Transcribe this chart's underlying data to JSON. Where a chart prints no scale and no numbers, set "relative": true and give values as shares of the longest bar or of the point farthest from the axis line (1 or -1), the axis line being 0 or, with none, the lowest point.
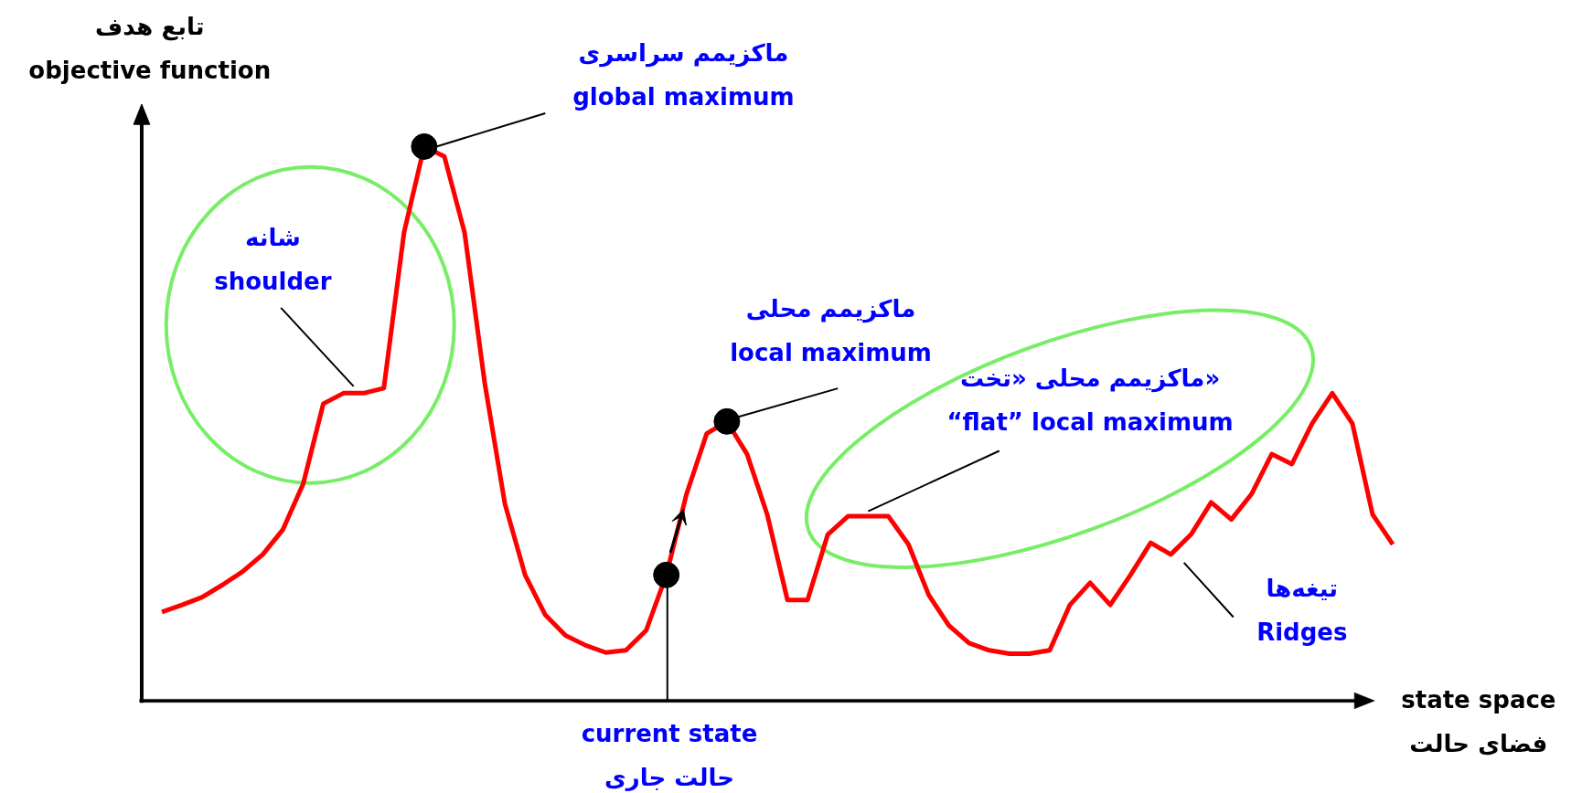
{
  "chart_data": {
    "type": "line",
    "relative": true,
    "grid": false,
    "xlabel": "state space\nفضای حالت",
    "ylabel": "تابع هدف\nobjective function",
    "categories": [
      null,
      null,
      null,
      null,
      null,
      null,
      null,
      null,
      null,
      null,
      null,
      null,
      null,
      null,
      null,
      null,
      null,
      null,
      null,
      null,
      null,
      null,
      null,
      null,
      null,
      null,
      null,
      null,
      null,
      null,
      null,
      null,
      null,
      null,
      null,
      null,
      null,
      null,
      null,
      null,
      null,
      null,
      null,
      null,
      null,
      null,
      null,
      null,
      null,
      null,
      null,
      null,
      null,
      null,
      null,
      null,
      null,
      null,
      null,
      null,
      null,
      null
    ],
    "series": [
      {
        "color": "#ff0000",
        "values": [
          0.16,
          0.173,
          0.187,
          0.209,
          0.233,
          0.264,
          0.309,
          0.391,
          0.536,
          0.555,
          0.555,
          0.564,
          0.845,
          1,
          0.982,
          0.845,
          0.573,
          0.355,
          0.227,
          0.155,
          0.118,
          0.1,
          0.087,
          0.091,
          0.127,
          0.227,
          0.373,
          0.482,
          0.504,
          0.445,
          0.336,
          0.182,
          0.182,
          0.3,
          0.333,
          0.333,
          0.333,
          0.282,
          0.191,
          0.136,
          0.104,
          0.091,
          0.085,
          0.085,
          0.091,
          0.173,
          0.213,
          0.173,
          0.227,
          0.285,
          0.264,
          0.3,
          0.358,
          0.327,
          0.373,
          0.445,
          0.427,
          0.5,
          0.555,
          0.5,
          0.336,
          0.282
        ]
      }
    ],
    "annotations": [
      "ماکزیمم سراسری\nglobal maximum",
      "شانه\nshoulder",
      "ماکزیمم محلی\nlocal maximum",
      "ماکزیمم محلی «تخت»\n“flat” local maximum",
      "تیغه‌ها\nRidges",
      "current state\nحالت جاری"
    ]
  }
}
